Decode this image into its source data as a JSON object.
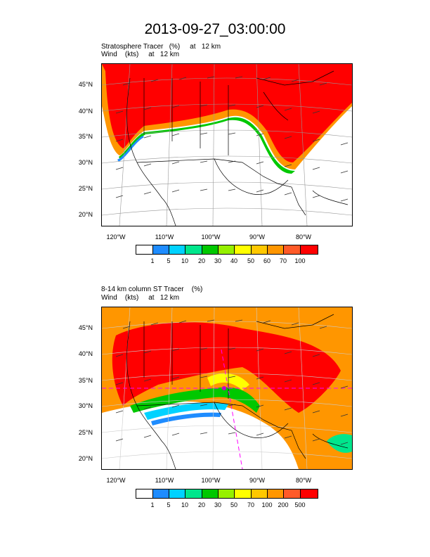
{
  "title": "2013-09-27_03:00:00",
  "panel1": {
    "line1": "Stratosphere Tracer   (%)     at   12 km",
    "line2": "Wind    (kts)     at   12 km",
    "lat_labels": [
      "45°N",
      "40°N",
      "35°N",
      "30°N",
      "25°N",
      "20°N"
    ],
    "lon_labels": [
      "120°W",
      "110°W",
      "100°W",
      "90°W",
      "80°W"
    ],
    "colorbar_labels": [
      "1",
      "5",
      "10",
      "20",
      "30",
      "40",
      "50",
      "60",
      "70",
      "100"
    ]
  },
  "panel2": {
    "line1": "8-14 km column ST Tracer    (%)",
    "line2": "Wind    (kts)     at   12 km",
    "lat_labels": [
      "45°N",
      "40°N",
      "35°N",
      "30°N",
      "25°N",
      "20°N"
    ],
    "lon_labels": [
      "120°W",
      "110°W",
      "100°W",
      "90°W",
      "80°W"
    ],
    "colorbar_labels": [
      "1",
      "5",
      "10",
      "20",
      "30",
      "50",
      "70",
      "100",
      "200",
      "500"
    ]
  },
  "colors": {
    "c0": "#ffffff",
    "c1": "#1e8cff",
    "c2": "#00d2ff",
    "c3": "#00e68c",
    "c4": "#00c800",
    "c5": "#96f000",
    "c6": "#ffff00",
    "c7": "#ffc800",
    "c8": "#ff9600",
    "c9": "#ff5a28",
    "c10": "#ff0000"
  }
}
